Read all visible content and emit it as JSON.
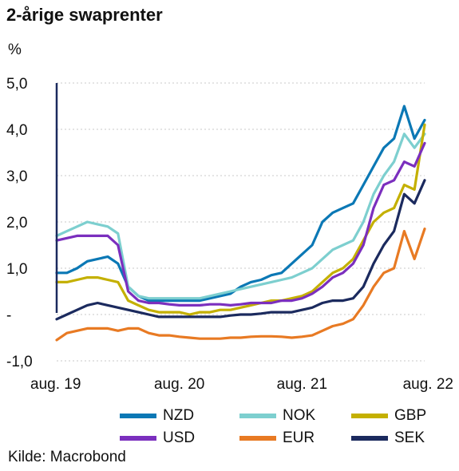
{
  "title": "2-årige swaprenter",
  "unit": "%",
  "source": "Kilde: Macrobond",
  "chart_data": {
    "type": "line",
    "title": "2-årige swaprenter",
    "ylabel": "%",
    "ylim": [
      -1.0,
      5.0
    ],
    "yticks": [
      {
        "value": 5.0,
        "label": "5,0"
      },
      {
        "value": 4.0,
        "label": "4,0"
      },
      {
        "value": 3.0,
        "label": "3,0"
      },
      {
        "value": 2.0,
        "label": "2,0"
      },
      {
        "value": 1.0,
        "label": "1,0"
      },
      {
        "value": 0.0,
        "label": "-"
      },
      {
        "value": -1.0,
        "label": "-1,0"
      }
    ],
    "xlim": [
      "2019-08",
      "2022-08"
    ],
    "xticks": [
      {
        "value": "2019-08",
        "label": "aug. 19"
      },
      {
        "value": "2020-08",
        "label": "aug. 20"
      },
      {
        "value": "2021-08",
        "label": "aug. 21"
      },
      {
        "value": "2022-08",
        "label": "aug. 22"
      }
    ],
    "grid": true,
    "legend": "bottom",
    "x": [
      "2019-08",
      "2019-09",
      "2019-10",
      "2019-11",
      "2019-12",
      "2020-01",
      "2020-02",
      "2020-03",
      "2020-04",
      "2020-05",
      "2020-06",
      "2020-07",
      "2020-08",
      "2020-09",
      "2020-10",
      "2020-11",
      "2020-12",
      "2021-01",
      "2021-02",
      "2021-03",
      "2021-04",
      "2021-05",
      "2021-06",
      "2021-07",
      "2021-08",
      "2021-09",
      "2021-10",
      "2021-11",
      "2021-12",
      "2022-01",
      "2022-02",
      "2022-03",
      "2022-04",
      "2022-05",
      "2022-06",
      "2022-07",
      "2022-08"
    ],
    "series": [
      {
        "name": "NZD",
        "color": "#0b78b5",
        "values": [
          0.9,
          0.9,
          1.0,
          1.15,
          1.2,
          1.25,
          1.1,
          0.6,
          0.4,
          0.3,
          0.3,
          0.3,
          0.3,
          0.3,
          0.3,
          0.35,
          0.4,
          0.45,
          0.6,
          0.7,
          0.75,
          0.85,
          0.9,
          1.1,
          1.3,
          1.5,
          2.0,
          2.2,
          2.3,
          2.4,
          2.8,
          3.2,
          3.6,
          3.8,
          4.5,
          3.8,
          4.2
        ]
      },
      {
        "name": "NOK",
        "color": "#7dcfcf",
        "values": [
          1.7,
          1.8,
          1.9,
          2.0,
          1.95,
          1.9,
          1.75,
          0.6,
          0.4,
          0.35,
          0.35,
          0.35,
          0.35,
          0.35,
          0.35,
          0.4,
          0.45,
          0.5,
          0.55,
          0.6,
          0.65,
          0.7,
          0.75,
          0.8,
          0.9,
          1.0,
          1.2,
          1.4,
          1.5,
          1.6,
          2.0,
          2.6,
          3.0,
          3.3,
          3.9,
          3.6,
          3.9
        ]
      },
      {
        "name": "GBP",
        "color": "#c4b000",
        "values": [
          0.7,
          0.7,
          0.75,
          0.8,
          0.8,
          0.75,
          0.7,
          0.3,
          0.2,
          0.1,
          0.05,
          0.05,
          0.05,
          0.0,
          0.05,
          0.05,
          0.1,
          0.1,
          0.15,
          0.2,
          0.25,
          0.3,
          0.3,
          0.35,
          0.4,
          0.5,
          0.7,
          0.9,
          1.0,
          1.2,
          1.6,
          2.0,
          2.2,
          2.3,
          2.8,
          2.7,
          4.1
        ]
      },
      {
        "name": "USD",
        "color": "#7b2fbe",
        "values": [
          1.6,
          1.65,
          1.7,
          1.7,
          1.7,
          1.7,
          1.5,
          0.5,
          0.3,
          0.25,
          0.25,
          0.22,
          0.2,
          0.2,
          0.2,
          0.22,
          0.22,
          0.2,
          0.22,
          0.25,
          0.25,
          0.25,
          0.3,
          0.3,
          0.35,
          0.45,
          0.6,
          0.8,
          0.9,
          1.1,
          1.5,
          2.3,
          2.8,
          2.9,
          3.3,
          3.2,
          3.7
        ]
      },
      {
        "name": "EUR",
        "color": "#e87a23",
        "values": [
          -0.55,
          -0.4,
          -0.35,
          -0.3,
          -0.3,
          -0.3,
          -0.35,
          -0.3,
          -0.3,
          -0.4,
          -0.45,
          -0.45,
          -0.48,
          -0.5,
          -0.52,
          -0.52,
          -0.52,
          -0.5,
          -0.5,
          -0.48,
          -0.47,
          -0.47,
          -0.48,
          -0.5,
          -0.48,
          -0.45,
          -0.35,
          -0.25,
          -0.2,
          -0.1,
          0.2,
          0.6,
          0.9,
          1.0,
          1.8,
          1.2,
          1.85
        ]
      },
      {
        "name": "SEK",
        "color": "#1b2a5e",
        "values": [
          -0.1,
          0.0,
          0.1,
          0.2,
          0.25,
          0.2,
          0.15,
          0.1,
          0.05,
          0.0,
          -0.05,
          -0.05,
          -0.05,
          -0.05,
          -0.05,
          -0.05,
          -0.05,
          -0.02,
          0.0,
          0.0,
          0.02,
          0.05,
          0.05,
          0.05,
          0.1,
          0.15,
          0.25,
          0.3,
          0.3,
          0.35,
          0.6,
          1.1,
          1.5,
          1.8,
          2.6,
          2.4,
          2.9
        ]
      }
    ]
  }
}
